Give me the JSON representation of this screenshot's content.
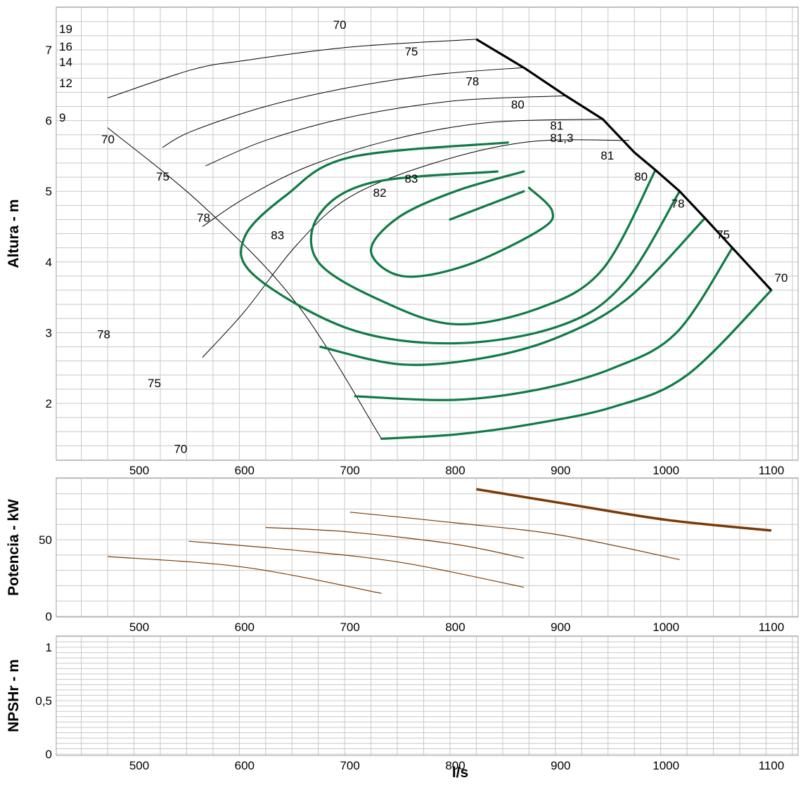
{
  "chart_data": [
    {
      "id": "head",
      "type": "line",
      "ylabel": "Altura - m",
      "xlim": [
        420,
        1135
      ],
      "ylim": [
        1.2,
        7.65
      ],
      "x_ticks": [
        "500",
        "600",
        "700",
        "800",
        "900",
        "1000",
        "1100"
      ],
      "y_ticks": [
        "2",
        "3",
        "4",
        "5",
        "6",
        "7"
      ],
      "impeller_labels": [
        "19",
        "16",
        "14",
        "12",
        "9"
      ],
      "grid": true,
      "head_curves": [
        {
          "points": [
            [
              820,
              7.15
            ],
            [
              700,
              7.04
            ],
            [
              600,
              6.85
            ],
            [
              550,
              6.72
            ],
            [
              470,
              6.32
            ]
          ]
        },
        {
          "points": [
            [
              865,
              6.75
            ],
            [
              780,
              6.65
            ],
            [
              700,
              6.47
            ],
            [
              620,
              6.2
            ],
            [
              550,
              5.85
            ],
            [
              522,
              5.62
            ]
          ]
        },
        {
          "points": [
            [
              905,
              6.35
            ],
            [
              800,
              6.28
            ],
            [
              700,
              6.05
            ],
            [
              620,
              5.72
            ],
            [
              563,
              5.36
            ]
          ]
        },
        {
          "points": [
            [
              940,
              6.02
            ],
            [
              830,
              5.97
            ],
            [
              740,
              5.73
            ],
            [
              660,
              5.35
            ],
            [
              600,
              4.9
            ],
            [
              560,
              4.5
            ]
          ]
        },
        {
          "points": [
            [
              965,
              5.72
            ],
            [
              870,
              5.7
            ],
            [
              780,
              5.4
            ],
            [
              700,
              4.92
            ],
            [
              650,
              4.25
            ],
            [
              600,
              3.3
            ],
            [
              560,
              2.65
            ]
          ]
        }
      ],
      "efficiency_curves": [
        {
          "label": "70",
          "points": [
            [
              730,
              1.5
            ],
            [
              800,
              1.56
            ],
            [
              870,
              1.7
            ],
            [
              950,
              1.95
            ],
            [
              1020,
              2.4
            ],
            [
              1100,
              3.6
            ]
          ]
        },
        {
          "label": "75",
          "points": [
            [
              705,
              2.1
            ],
            [
              800,
              2.05
            ],
            [
              880,
              2.2
            ],
            [
              950,
              2.5
            ],
            [
              1010,
              3.0
            ],
            [
              1063,
              4.2
            ]
          ]
        },
        {
          "label": "78",
          "points": [
            [
              672,
              2.8
            ],
            [
              750,
              2.55
            ],
            [
              830,
              2.65
            ],
            [
              900,
              2.95
            ],
            [
              965,
              3.5
            ],
            [
              1037,
              4.62
            ]
          ]
        },
        {
          "label": "80",
          "points": [
            [
              850,
              5.69
            ],
            [
              700,
              5.48
            ],
            [
              640,
              4.95
            ],
            [
              600,
              4.35
            ],
            [
              610,
              3.8
            ],
            [
              700,
              3.05
            ],
            [
              800,
              2.85
            ],
            [
              900,
              3.1
            ],
            [
              960,
              3.7
            ],
            [
              1013,
              5.0
            ]
          ]
        },
        {
          "label": "81",
          "points": [
            [
              840,
              5.28
            ],
            [
              720,
              5.12
            ],
            [
              670,
              4.65
            ],
            [
              670,
              4.0
            ],
            [
              730,
              3.45
            ],
            [
              800,
              3.12
            ],
            [
              880,
              3.35
            ],
            [
              940,
              3.9
            ],
            [
              990,
              5.3
            ]
          ]
        },
        {
          "label": "82",
          "points": [
            [
              865,
              5.28
            ],
            [
              800,
              5.0
            ],
            [
              745,
              4.62
            ],
            [
              720,
              4.15
            ],
            [
              750,
              3.8
            ],
            [
              810,
              3.95
            ],
            [
              880,
              4.45
            ],
            [
              892,
              4.72
            ],
            [
              870,
              5.05
            ]
          ]
        },
        {
          "label": "83",
          "points": [
            [
              795,
              4.6
            ],
            [
              865,
              5.0
            ]
          ]
        }
      ],
      "bep_line": {
        "points": [
          [
            820,
            7.15
          ],
          [
            865,
            6.75
          ],
          [
            905,
            6.35
          ],
          [
            940,
            6.02
          ],
          [
            970,
            5.55
          ],
          [
            990,
            5.3
          ],
          [
            1013,
            5.0
          ],
          [
            1037,
            4.62
          ],
          [
            1063,
            4.2
          ],
          [
            1100,
            3.6
          ]
        ]
      },
      "labels": [
        {
          "text": "70",
          "x": 684,
          "y": 7.3
        },
        {
          "text": "75",
          "x": 752,
          "y": 6.92
        },
        {
          "text": "78",
          "x": 810,
          "y": 6.5
        },
        {
          "text": "80",
          "x": 853,
          "y": 6.17
        },
        {
          "text": "81",
          "x": 890,
          "y": 5.87
        },
        {
          "text": "81,3",
          "x": 890,
          "y": 5.7
        },
        {
          "text": "81",
          "x": 938,
          "y": 5.45
        },
        {
          "text": "80",
          "x": 970,
          "y": 5.15
        },
        {
          "text": "78",
          "x": 1005,
          "y": 4.77
        },
        {
          "text": "75",
          "x": 1048,
          "y": 4.33
        },
        {
          "text": "70",
          "x": 1103,
          "y": 3.72
        },
        {
          "text": "70",
          "x": 144,
          "y": 5.68
        },
        {
          "text": "75",
          "x": 222,
          "y": 5.15
        },
        {
          "text": "78",
          "x": 280,
          "y": 4.57
        },
        {
          "text": "83",
          "x": 752,
          "y": 5.12
        },
        {
          "text": "82",
          "x": 722,
          "y": 4.92
        },
        {
          "text": "83",
          "x": 625,
          "y": 4.32
        },
        {
          "text": "78",
          "x": 460,
          "y": 2.92
        },
        {
          "text": "75",
          "x": 508,
          "y": 2.23
        },
        {
          "text": "70",
          "x": 533,
          "y": 1.3
        }
      ]
    },
    {
      "id": "power",
      "type": "line",
      "ylabel": "Potencia - kW",
      "xlim": [
        420,
        1135
      ],
      "ylim": [
        0,
        92
      ],
      "x_ticks": [
        "500",
        "600",
        "700",
        "800",
        "900",
        "1000",
        "1100"
      ],
      "y_ticks": [
        "0",
        "50"
      ],
      "grid": true,
      "series": [
        {
          "points": [
            [
              820,
              83
            ],
            [
              900,
              74
            ],
            [
              1000,
              63
            ],
            [
              1100,
              56
            ]
          ]
        },
        {
          "points": [
            [
              700,
              68
            ],
            [
              800,
              61
            ],
            [
              900,
              53
            ],
            [
              1013,
              37
            ]
          ]
        },
        {
          "points": [
            [
              620,
              58
            ],
            [
              700,
              55
            ],
            [
              800,
              47
            ],
            [
              865,
              38
            ]
          ]
        },
        {
          "points": [
            [
              547,
              49
            ],
            [
              650,
              43
            ],
            [
              750,
              35
            ],
            [
              865,
              19
            ]
          ]
        },
        {
          "points": [
            [
              470,
              39
            ],
            [
              600,
              32
            ],
            [
              730,
              15
            ]
          ]
        }
      ]
    },
    {
      "id": "npsh",
      "type": "line",
      "ylabel": "NPSHr - m",
      "xlabel": "l/s",
      "xlim": [
        420,
        1135
      ],
      "ylim": [
        0,
        1.1
      ],
      "x_ticks": [
        "500",
        "600",
        "700",
        "800",
        "900",
        "1000",
        "1100"
      ],
      "y_ticks": [
        "0",
        "0,5",
        "1"
      ],
      "grid": true,
      "series": []
    }
  ],
  "colors": {
    "efficiency": "#0f7b45",
    "bep": "#000000",
    "head": "#000000",
    "power_main": "#7a3a06",
    "power_thin": "#7a3a06",
    "grid": "#c8c8c8",
    "frame": "#a0a0a0"
  }
}
